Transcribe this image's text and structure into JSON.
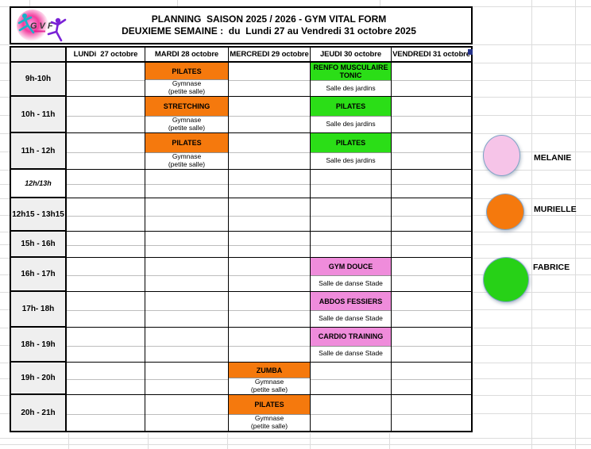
{
  "header": {
    "logo": "GVF",
    "line1": "PLANNING  SAISON 2025 / 2026 - GYM VITAL FORM",
    "line2": "DEUXIEME SEMAINE :  du  Lundi 27 au Vendredi 31 octobre 2025"
  },
  "days": [
    "LUNDi  27 octobre",
    "MARDI 28 octobre",
    "MERCREDI 29 octobre",
    "JEUDI 30 octobre",
    "VENDREDI 31 octobre"
  ],
  "colors": {
    "orange": "#F5790D",
    "green": "#2BDE17",
    "pink": "#EF8CDB"
  },
  "rows": [
    {
      "time": "9h-10h",
      "italic": false,
      "cells": [
        null,
        {
          "label": "PILATES",
          "color": "orange",
          "salle": "Gymnase\n(petite salle)"
        },
        null,
        {
          "label": "RENFO MUSCULAIRE TONIC",
          "color": "green",
          "salle": "Salle des jardins"
        },
        null
      ]
    },
    {
      "time": "10h - 11h",
      "italic": false,
      "cells": [
        null,
        {
          "label": "STRETCHING",
          "color": "orange",
          "salle": "Gymnase\n(petite salle)"
        },
        null,
        {
          "label": "PILATES",
          "color": "green",
          "salle": "Salle des jardins"
        },
        null
      ]
    },
    {
      "time": "11h - 12h",
      "italic": false,
      "cells": [
        null,
        {
          "label": "PILATES",
          "color": "orange",
          "salle": "Gymnase\n(petite salle)"
        },
        null,
        {
          "label": "PILATES",
          "color": "green",
          "salle": "Salle des jardins"
        },
        null
      ]
    },
    {
      "time": "12h/13h",
      "italic": true,
      "cells": [
        null,
        null,
        null,
        null,
        null
      ]
    },
    {
      "time": "12h15 - 13h15",
      "italic": false,
      "cells": [
        null,
        null,
        null,
        null,
        null
      ]
    },
    {
      "time": "15h - 16h",
      "italic": false,
      "cells": [
        null,
        null,
        null,
        null,
        null
      ]
    },
    {
      "time": "16h - 17h",
      "italic": false,
      "cells": [
        null,
        null,
        null,
        {
          "label": "GYM DOUCE",
          "color": "pink",
          "salle": "Salle de danse Stade"
        },
        null
      ]
    },
    {
      "time": "17h- 18h",
      "italic": false,
      "cells": [
        null,
        null,
        null,
        {
          "label": "ABDOS FESSIERS",
          "color": "pink",
          "salle": "Salle de danse Stade"
        },
        null
      ]
    },
    {
      "time": "18h - 19h",
      "italic": false,
      "cells": [
        null,
        null,
        null,
        {
          "label": "CARDIO TRAINING",
          "color": "pink",
          "salle": "Salle de danse Stade"
        },
        null
      ]
    },
    {
      "time": "19h - 20h",
      "italic": false,
      "cells": [
        null,
        null,
        {
          "label": "ZUMBA",
          "color": "orange",
          "salle": "Gymnase\n(petite salle)"
        },
        null,
        null
      ]
    },
    {
      "time": "20h - 21h",
      "italic": false,
      "cells": [
        null,
        null,
        {
          "label": "PILATES",
          "color": "orange",
          "salle": "Gymnase\n(petite salle)"
        },
        null,
        null
      ]
    }
  ],
  "legend": [
    {
      "name": "MELANIE",
      "color": "#F6C4E8"
    },
    {
      "name": "MURIELLE",
      "color": "#F5790D"
    },
    {
      "name": "FABRICE",
      "color": "#27D117"
    }
  ]
}
